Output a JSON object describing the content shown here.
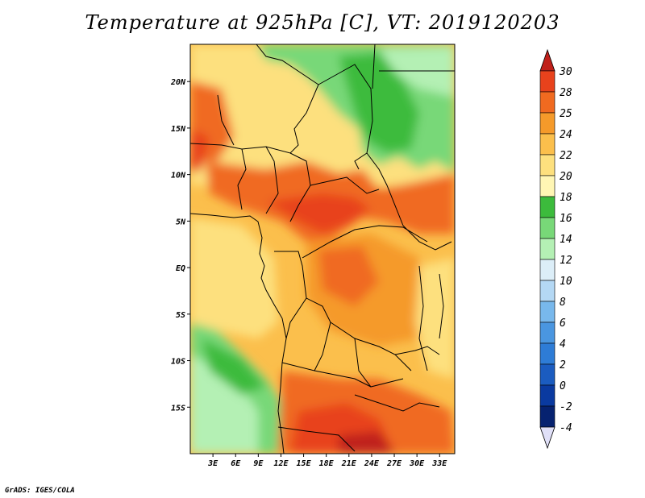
{
  "title": "Temperature at 925hPa [C], VT: 2019120203",
  "footer": "GrADS: IGES/COLA",
  "map": {
    "lon_range": [
      0,
      35
    ],
    "lat_range": [
      -20,
      24
    ],
    "x_tick_labels": [
      "3E",
      "6E",
      "9E",
      "12E",
      "15E",
      "18E",
      "21E",
      "24E",
      "27E",
      "30E",
      "33E"
    ],
    "x_tick_values": [
      3,
      6,
      9,
      12,
      15,
      18,
      21,
      24,
      27,
      30,
      33
    ],
    "y_tick_labels": [
      "20N",
      "15N",
      "10N",
      "5N",
      "EQ",
      "5S",
      "10S",
      "15S"
    ],
    "y_tick_values": [
      20,
      15,
      10,
      5,
      0,
      -5,
      -10,
      -15
    ]
  },
  "colorbar": {
    "labels": [
      "30",
      "28",
      "25",
      "24",
      "22",
      "20",
      "18",
      "16",
      "14",
      "12",
      "10",
      "8",
      "6",
      "4",
      "2",
      "0",
      "-2",
      "-4"
    ],
    "colors": [
      "#c0201a",
      "#e8421c",
      "#f06a20",
      "#f59a2a",
      "#fbbf4c",
      "#fde07e",
      "#fff6b4",
      "#3cbb3c",
      "#78d878",
      "#b4f0b4",
      "#dceef8",
      "#b4d8f4",
      "#78b8ec",
      "#4a96e0",
      "#2e7cd6",
      "#1b5cc0",
      "#0a3aa0",
      "#062270",
      "#e0e0f8"
    ]
  }
}
